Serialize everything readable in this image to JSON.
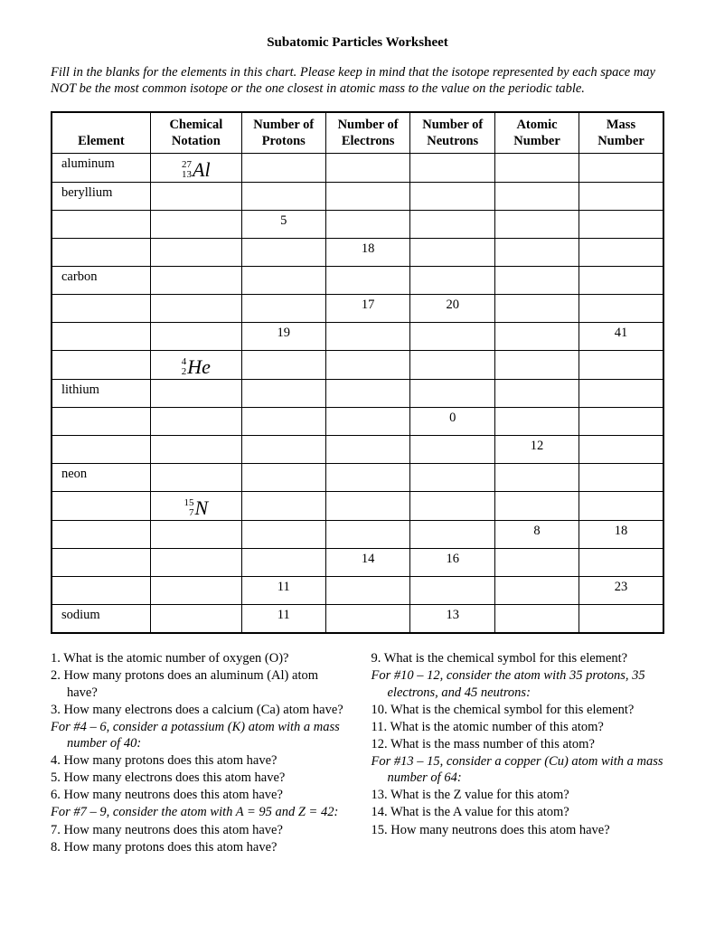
{
  "title": "Subatomic Particles Worksheet",
  "instructions": "Fill in the blanks for the elements in this chart. Please keep in mind that the isotope represented by each space may NOT be the most common isotope or the one closest in atomic mass to the value on the periodic table.",
  "table": {
    "headers": [
      "Element",
      "Chemical Notation",
      "Number of Protons",
      "Number of Electrons",
      "Number of Neutrons",
      "Atomic Number",
      "Mass Number"
    ],
    "rows": [
      {
        "element": "aluminum",
        "notation": {
          "mass": "27",
          "z": "13",
          "sym": "Al"
        },
        "protons": "",
        "electrons": "",
        "neutrons": "",
        "atomic": "",
        "massnum": ""
      },
      {
        "element": "beryllium",
        "notation": null,
        "protons": "",
        "electrons": "",
        "neutrons": "",
        "atomic": "",
        "massnum": ""
      },
      {
        "element": "",
        "notation": null,
        "protons": "5",
        "electrons": "",
        "neutrons": "",
        "atomic": "",
        "massnum": ""
      },
      {
        "element": "",
        "notation": null,
        "protons": "",
        "electrons": "18",
        "neutrons": "",
        "atomic": "",
        "massnum": ""
      },
      {
        "element": "carbon",
        "notation": null,
        "protons": "",
        "electrons": "",
        "neutrons": "",
        "atomic": "",
        "massnum": ""
      },
      {
        "element": "",
        "notation": null,
        "protons": "",
        "electrons": "17",
        "neutrons": "20",
        "atomic": "",
        "massnum": ""
      },
      {
        "element": "",
        "notation": null,
        "protons": "19",
        "electrons": "",
        "neutrons": "",
        "atomic": "",
        "massnum": "41"
      },
      {
        "element": "",
        "notation": {
          "mass": "4",
          "z": "2",
          "sym": "He"
        },
        "protons": "",
        "electrons": "",
        "neutrons": "",
        "atomic": "",
        "massnum": ""
      },
      {
        "element": "lithium",
        "notation": null,
        "protons": "",
        "electrons": "",
        "neutrons": "",
        "atomic": "",
        "massnum": ""
      },
      {
        "element": "",
        "notation": null,
        "protons": "",
        "electrons": "",
        "neutrons": "0",
        "atomic": "",
        "massnum": ""
      },
      {
        "element": "",
        "notation": null,
        "protons": "",
        "electrons": "",
        "neutrons": "",
        "atomic": "12",
        "massnum": ""
      },
      {
        "element": "neon",
        "notation": null,
        "protons": "",
        "electrons": "",
        "neutrons": "",
        "atomic": "",
        "massnum": ""
      },
      {
        "element": "",
        "notation": {
          "mass": "15",
          "z": "7",
          "sym": "N"
        },
        "protons": "",
        "electrons": "",
        "neutrons": "",
        "atomic": "",
        "massnum": ""
      },
      {
        "element": "",
        "notation": null,
        "protons": "",
        "electrons": "",
        "neutrons": "",
        "atomic": "8",
        "massnum": "18"
      },
      {
        "element": "",
        "notation": null,
        "protons": "",
        "electrons": "14",
        "neutrons": "16",
        "atomic": "",
        "massnum": ""
      },
      {
        "element": "",
        "notation": null,
        "protons": "11",
        "electrons": "",
        "neutrons": "",
        "atomic": "",
        "massnum": "23"
      },
      {
        "element": "sodium",
        "notation": null,
        "protons": "11",
        "electrons": "",
        "neutrons": "13",
        "atomic": "",
        "massnum": ""
      }
    ]
  },
  "questions": {
    "left": [
      {
        "text": "1. What is the atomic number of oxygen (O)?",
        "italic": false,
        "indent": 0
      },
      {
        "text": "2.  How many protons does an aluminum (Al) atom have?",
        "italic": false,
        "indent": 0
      },
      {
        "text": "3.  How many electrons does a calcium (Ca) atom have?",
        "italic": false,
        "indent": 0
      },
      {
        "text": "For #4 – 6, consider a potassium (K) atom with a mass number of 40:",
        "italic": true,
        "indent": 0
      },
      {
        "text": "4.  How many protons does this atom have?",
        "italic": false,
        "indent": 0
      },
      {
        "text": "5.  How many electrons does this atom have?",
        "italic": false,
        "indent": 0
      },
      {
        "text": "6.  How many neutrons does this atom have?",
        "italic": false,
        "indent": 0
      },
      {
        "text": "For #7 – 9, consider the atom with A = 95 and Z = 42:",
        "italic": true,
        "indent": 0
      },
      {
        "text": "7.  How many neutrons does this atom have?",
        "italic": false,
        "indent": 0
      },
      {
        "text": "8.  How many protons does this atom have?",
        "italic": false,
        "indent": 0
      }
    ],
    "right": [
      {
        "text": "9.  What is the chemical symbol for this element?",
        "italic": false,
        "indent": 0
      },
      {
        "text": "For #10 – 12, consider the atom with 35 protons, 35 electrons, and 45 neutrons:",
        "italic": true,
        "indent": 0
      },
      {
        "text": "10.  What is the chemical symbol for this element?",
        "italic": false,
        "indent": 0
      },
      {
        "text": "11.  What is the atomic number of this atom?",
        "italic": false,
        "indent": 0
      },
      {
        "text": "12.  What is the mass number of this atom?",
        "italic": false,
        "indent": 0
      },
      {
        "text": "For #13 – 15, consider a copper (Cu) atom with a mass number of 64:",
        "italic": true,
        "indent": 0
      },
      {
        "text": "13.  What is the Z value for this atom?",
        "italic": false,
        "indent": 0
      },
      {
        "text": "14.  What is the A value for this atom?",
        "italic": false,
        "indent": 0
      },
      {
        "text": "15.  How many neutrons does this atom have?",
        "italic": false,
        "indent": 0
      }
    ]
  }
}
